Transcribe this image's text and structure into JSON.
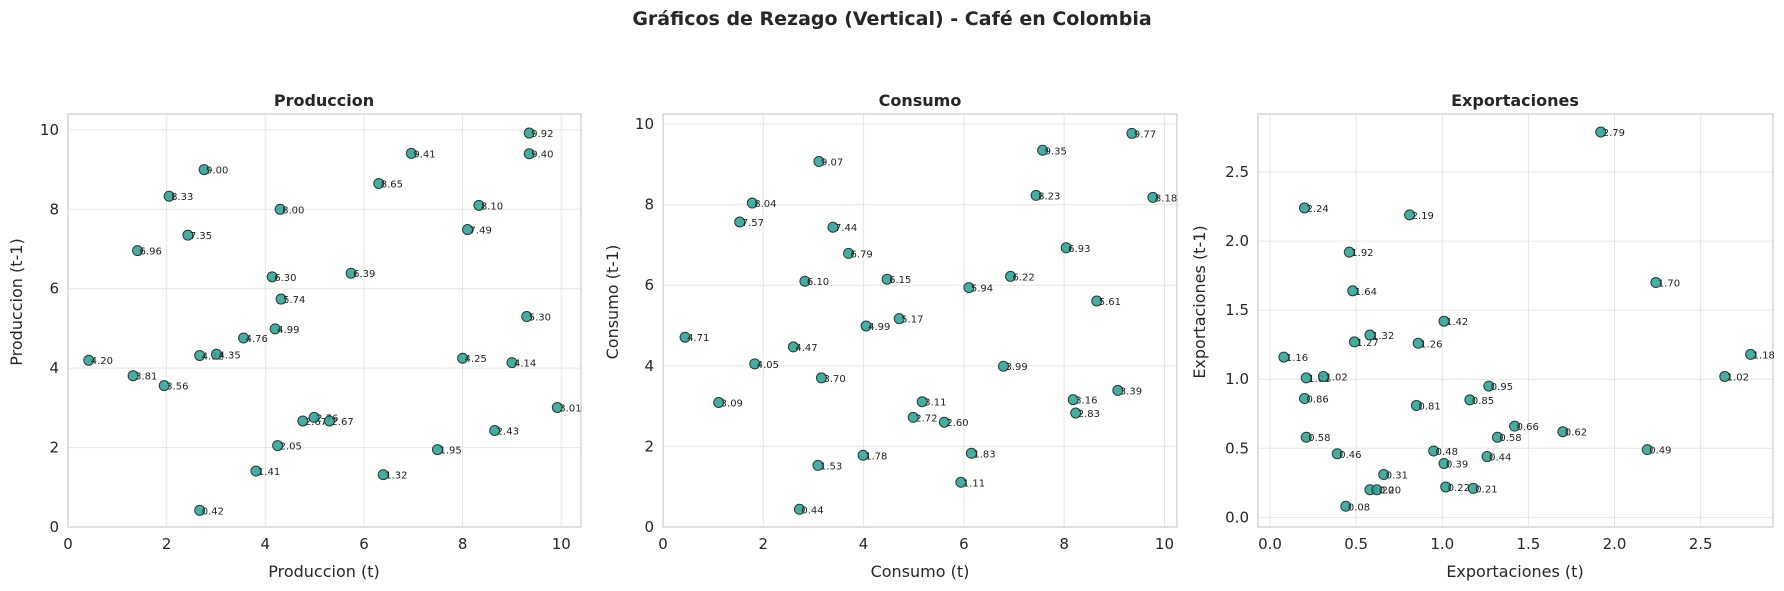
{
  "figure": {
    "title": "Gráficos de Rezago (Vertical) - Café en Colombia",
    "marker_color": "#2a9d8f"
  },
  "chart_data": [
    {
      "type": "scatter",
      "title": "Produccion",
      "xlabel": "Produccion (t)",
      "ylabel": "Produccion (t-1)",
      "xlim": [
        0,
        10.4
      ],
      "ylim": [
        0,
        10.4
      ],
      "xticks": [
        0,
        2,
        4,
        6,
        8,
        10
      ],
      "yticks": [
        0,
        2,
        4,
        6,
        8,
        10
      ],
      "xtick_labels": [
        "0",
        "2",
        "4",
        "6",
        "8",
        "10"
      ],
      "ytick_labels": [
        "0",
        "2",
        "4",
        "6",
        "8",
        "10"
      ],
      "grid": true,
      "points": [
        {
          "x": 0.42,
          "y": 4.2,
          "label": "4.20"
        },
        {
          "x": 1.32,
          "y": 3.81,
          "label": "3.81"
        },
        {
          "x": 1.41,
          "y": 6.96,
          "label": "6.96"
        },
        {
          "x": 1.95,
          "y": 3.56,
          "label": "3.56"
        },
        {
          "x": 2.05,
          "y": 8.33,
          "label": "8.33"
        },
        {
          "x": 2.43,
          "y": 7.35,
          "label": "7.35"
        },
        {
          "x": 2.67,
          "y": 0.42,
          "label": "0.42"
        },
        {
          "x": 2.67,
          "y": 4.32,
          "label": "4.32"
        },
        {
          "x": 2.76,
          "y": 9.0,
          "label": "9.00"
        },
        {
          "x": 3.01,
          "y": 4.35,
          "label": "4.35"
        },
        {
          "x": 3.81,
          "y": 1.41,
          "label": "1.41"
        },
        {
          "x": 3.56,
          "y": 4.76,
          "label": "4.76"
        },
        {
          "x": 4.14,
          "y": 6.3,
          "label": "6.30"
        },
        {
          "x": 4.2,
          "y": 4.99,
          "label": "4.99"
        },
        {
          "x": 4.25,
          "y": 2.05,
          "label": "2.05"
        },
        {
          "x": 4.3,
          "y": 8.0,
          "label": "8.00"
        },
        {
          "x": 4.32,
          "y": 5.74,
          "label": "5.74"
        },
        {
          "x": 4.76,
          "y": 2.67,
          "label": "2.67"
        },
        {
          "x": 4.99,
          "y": 2.76,
          "label": "2.76"
        },
        {
          "x": 5.3,
          "y": 2.67,
          "label": "2.67"
        },
        {
          "x": 5.74,
          "y": 6.39,
          "label": "6.39"
        },
        {
          "x": 6.3,
          "y": 8.65,
          "label": "8.65"
        },
        {
          "x": 6.39,
          "y": 1.32,
          "label": "1.32"
        },
        {
          "x": 6.96,
          "y": 9.41,
          "label": "9.41"
        },
        {
          "x": 7.49,
          "y": 1.95,
          "label": "1.95"
        },
        {
          "x": 8.0,
          "y": 4.25,
          "label": "4.25"
        },
        {
          "x": 8.1,
          "y": 7.49,
          "label": "7.49"
        },
        {
          "x": 8.33,
          "y": 8.1,
          "label": "8.10"
        },
        {
          "x": 8.65,
          "y": 2.43,
          "label": "2.43"
        },
        {
          "x": 9.0,
          "y": 4.14,
          "label": "4.14"
        },
        {
          "x": 9.3,
          "y": 5.3,
          "label": "5.30"
        },
        {
          "x": 9.35,
          "y": 9.92,
          "label": "9.92"
        },
        {
          "x": 9.35,
          "y": 9.4,
          "label": "9.40"
        },
        {
          "x": 9.92,
          "y": 3.01,
          "label": "3.01"
        }
      ]
    },
    {
      "type": "scatter",
      "title": "Consumo",
      "xlabel": "Consumo (t)",
      "ylabel": "Consumo (t-1)",
      "xlim": [
        0,
        10.25
      ],
      "ylim": [
        0,
        10.25
      ],
      "xticks": [
        0,
        2,
        4,
        6,
        8,
        10
      ],
      "yticks": [
        0,
        2,
        4,
        6,
        8,
        10
      ],
      "xtick_labels": [
        "0",
        "2",
        "4",
        "6",
        "8",
        "10"
      ],
      "ytick_labels": [
        "0",
        "2",
        "4",
        "6",
        "8",
        "10"
      ],
      "grid": true,
      "points": [
        {
          "x": 0.44,
          "y": 4.71,
          "label": "4.71"
        },
        {
          "x": 1.11,
          "y": 3.09,
          "label": "3.09"
        },
        {
          "x": 1.53,
          "y": 7.57,
          "label": "7.57"
        },
        {
          "x": 1.78,
          "y": 8.04,
          "label": "8.04"
        },
        {
          "x": 1.83,
          "y": 4.05,
          "label": "4.05"
        },
        {
          "x": 2.6,
          "y": 4.47,
          "label": "4.47"
        },
        {
          "x": 2.72,
          "y": 0.44,
          "label": "0.44"
        },
        {
          "x": 2.83,
          "y": 6.1,
          "label": "6.10"
        },
        {
          "x": 3.09,
          "y": 1.53,
          "label": "1.53"
        },
        {
          "x": 3.11,
          "y": 9.07,
          "label": "9.07"
        },
        {
          "x": 3.16,
          "y": 3.7,
          "label": "3.70"
        },
        {
          "x": 3.39,
          "y": 7.44,
          "label": "7.44"
        },
        {
          "x": 3.7,
          "y": 6.79,
          "label": "6.79"
        },
        {
          "x": 3.99,
          "y": 1.78,
          "label": "1.78"
        },
        {
          "x": 4.05,
          "y": 4.99,
          "label": "4.99"
        },
        {
          "x": 4.47,
          "y": 6.15,
          "label": "6.15"
        },
        {
          "x": 4.71,
          "y": 5.17,
          "label": "5.17"
        },
        {
          "x": 4.99,
          "y": 2.72,
          "label": "2.72"
        },
        {
          "x": 5.17,
          "y": 3.11,
          "label": "3.11"
        },
        {
          "x": 5.61,
          "y": 2.6,
          "label": "2.60"
        },
        {
          "x": 5.94,
          "y": 1.11,
          "label": "1.11"
        },
        {
          "x": 6.1,
          "y": 5.94,
          "label": "5.94"
        },
        {
          "x": 6.15,
          "y": 1.83,
          "label": "1.83"
        },
        {
          "x": 6.79,
          "y": 3.99,
          "label": "3.99"
        },
        {
          "x": 6.93,
          "y": 6.22,
          "label": "6.22"
        },
        {
          "x": 7.44,
          "y": 8.23,
          "label": "8.23"
        },
        {
          "x": 7.57,
          "y": 9.35,
          "label": "9.35"
        },
        {
          "x": 8.04,
          "y": 6.93,
          "label": "6.93"
        },
        {
          "x": 8.18,
          "y": 3.16,
          "label": "3.16"
        },
        {
          "x": 8.23,
          "y": 2.83,
          "label": "2.83"
        },
        {
          "x": 8.65,
          "y": 5.61,
          "label": "5.61"
        },
        {
          "x": 9.07,
          "y": 3.39,
          "label": "3.39"
        },
        {
          "x": 9.35,
          "y": 9.77,
          "label": "9.77"
        },
        {
          "x": 9.77,
          "y": 8.18,
          "label": "8.18"
        }
      ]
    },
    {
      "type": "scatter",
      "title": "Exportaciones",
      "xlabel": "Exportaciones (t)",
      "ylabel": "Exportaciones (t-1)",
      "xlim": [
        -0.07,
        2.92
      ],
      "ylim": [
        -0.07,
        2.92
      ],
      "xticks": [
        0.0,
        0.5,
        1.0,
        1.5,
        2.0,
        2.5
      ],
      "yticks": [
        0.0,
        0.5,
        1.0,
        1.5,
        2.0,
        2.5
      ],
      "xtick_labels": [
        "0.0",
        "0.5",
        "1.0",
        "1.5",
        "2.0",
        "2.5"
      ],
      "ytick_labels": [
        "0.0",
        "0.5",
        "1.0",
        "1.5",
        "2.0",
        "2.5"
      ],
      "grid": true,
      "points": [
        {
          "x": 0.08,
          "y": 1.16,
          "label": "1.16"
        },
        {
          "x": 0.2,
          "y": 2.24,
          "label": "2.24"
        },
        {
          "x": 0.2,
          "y": 0.86,
          "label": "0.86"
        },
        {
          "x": 0.21,
          "y": 1.01,
          "label": "1.01"
        },
        {
          "x": 0.21,
          "y": 0.58,
          "label": "0.58"
        },
        {
          "x": 0.31,
          "y": 1.02,
          "label": "1.02"
        },
        {
          "x": 0.39,
          "y": 0.46,
          "label": "0.46"
        },
        {
          "x": 0.44,
          "y": 0.08,
          "label": "0.08"
        },
        {
          "x": 0.46,
          "y": 1.92,
          "label": "1.92"
        },
        {
          "x": 0.48,
          "y": 1.64,
          "label": "1.64"
        },
        {
          "x": 0.49,
          "y": 1.27,
          "label": "1.27"
        },
        {
          "x": 0.58,
          "y": 1.32,
          "label": "1.32"
        },
        {
          "x": 0.58,
          "y": 0.2,
          "label": "0.20"
        },
        {
          "x": 0.62,
          "y": 0.2,
          "label": "0.20"
        },
        {
          "x": 0.66,
          "y": 0.31,
          "label": "0.31"
        },
        {
          "x": 0.81,
          "y": 2.19,
          "label": "2.19"
        },
        {
          "x": 0.85,
          "y": 0.81,
          "label": "0.81"
        },
        {
          "x": 0.86,
          "y": 1.26,
          "label": "1.26"
        },
        {
          "x": 0.95,
          "y": 0.48,
          "label": "0.48"
        },
        {
          "x": 1.01,
          "y": 1.42,
          "label": "1.42"
        },
        {
          "x": 1.01,
          "y": 0.39,
          "label": "0.39"
        },
        {
          "x": 1.02,
          "y": 0.22,
          "label": "0.22"
        },
        {
          "x": 1.16,
          "y": 0.85,
          "label": "0.85"
        },
        {
          "x": 1.18,
          "y": 0.21,
          "label": "0.21"
        },
        {
          "x": 1.26,
          "y": 0.44,
          "label": "0.44"
        },
        {
          "x": 1.27,
          "y": 0.95,
          "label": "0.95"
        },
        {
          "x": 1.32,
          "y": 0.58,
          "label": "0.58"
        },
        {
          "x": 1.42,
          "y": 0.66,
          "label": "0.66"
        },
        {
          "x": 1.7,
          "y": 0.62,
          "label": "0.62"
        },
        {
          "x": 1.92,
          "y": 2.79,
          "label": "2.79"
        },
        {
          "x": 2.19,
          "y": 0.49,
          "label": "0.49"
        },
        {
          "x": 2.24,
          "y": 1.7,
          "label": "1.70"
        },
        {
          "x": 2.64,
          "y": 1.02,
          "label": "1.02"
        },
        {
          "x": 2.79,
          "y": 1.18,
          "label": "1.18"
        }
      ]
    }
  ]
}
